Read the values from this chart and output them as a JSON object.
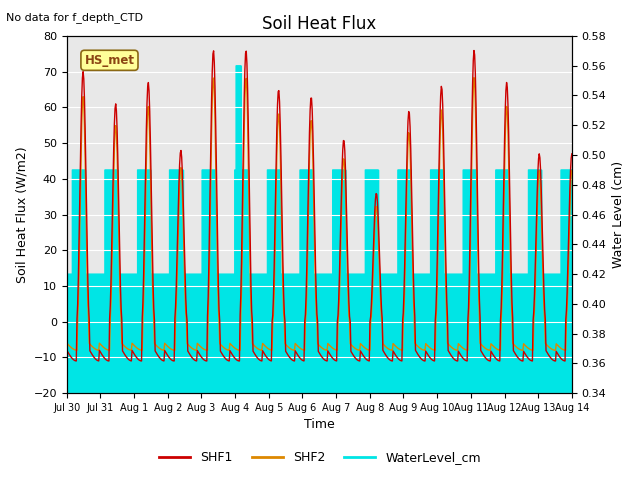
{
  "title": "Soil Heat Flux",
  "top_left_note": "No data for f_depth_CTD",
  "box_label": "HS_met",
  "xlabel": "Time",
  "ylabel_left": "Soil Heat Flux (W/m2)",
  "ylabel_right": "Water Level (cm)",
  "ylim_left": [
    -20,
    80
  ],
  "ylim_right": [
    0.34,
    0.58
  ],
  "yticks_left": [
    -20,
    -10,
    0,
    10,
    20,
    30,
    40,
    50,
    60,
    70,
    80
  ],
  "yticks_right": [
    0.34,
    0.36,
    0.38,
    0.4,
    0.42,
    0.44,
    0.46,
    0.48,
    0.5,
    0.52,
    0.54,
    0.56,
    0.58
  ],
  "xtick_labels": [
    "Jul 30",
    "Jul 31",
    "Aug 1",
    "Aug 2",
    "Aug 3",
    "Aug 4",
    "Aug 5",
    "Aug 6",
    "Aug 7",
    "Aug 8",
    "Aug 9",
    "Aug 10",
    "Aug 11",
    "Aug 12",
    "Aug 13",
    "Aug 14"
  ],
  "plot_bg_color": "#e8e8e8",
  "shf1_color": "#cc0000",
  "shf2_color": "#dd8800",
  "water_color": "#00e5e5",
  "legend_entries": [
    "SHF1",
    "SHF2",
    "WaterLevel_cm"
  ],
  "water_high": 0.49,
  "water_low": 0.42,
  "water_spike": 0.56,
  "shf1_peaks": [
    70,
    61,
    67,
    48,
    76,
    76,
    65,
    63,
    51,
    36,
    59,
    66,
    76,
    67,
    47
  ],
  "n_days": 15.5
}
